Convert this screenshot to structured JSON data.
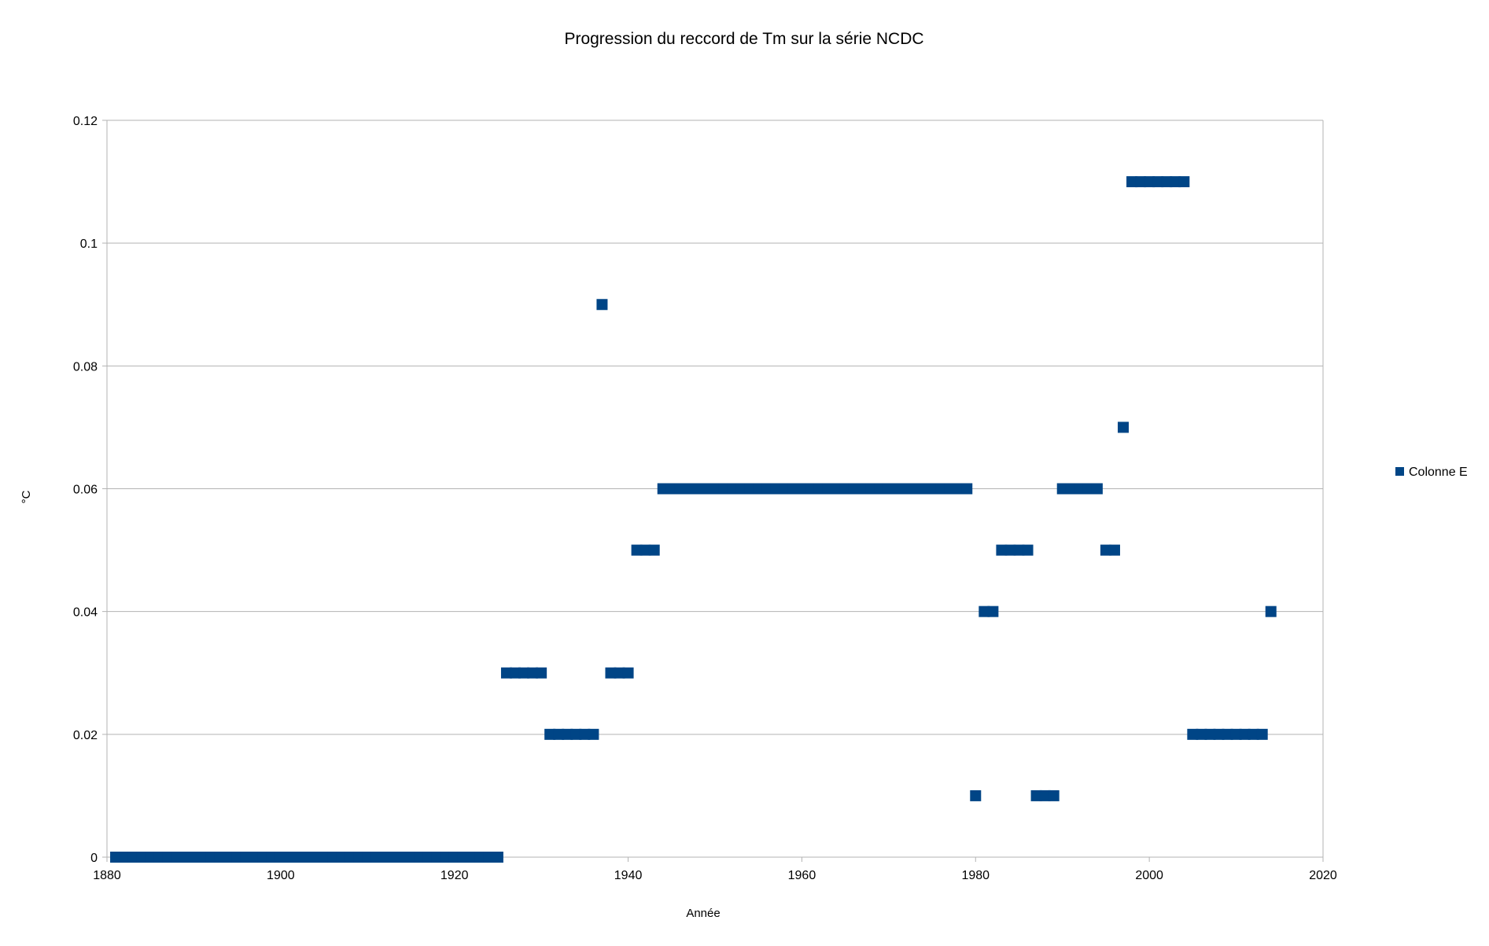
{
  "chart_data": {
    "type": "scatter",
    "title": "Progression du reccord de Tm sur la série NCDC",
    "xlabel": "Année",
    "ylabel": "°C",
    "xlim": [
      1880,
      2020
    ],
    "ylim": [
      0,
      0.12
    ],
    "x_ticks": [
      "1880",
      "1900",
      "1920",
      "1940",
      "1960",
      "1980",
      "2000",
      "2020"
    ],
    "y_ticks": [
      "0",
      "0.02",
      "0.04",
      "0.06",
      "0.08",
      "0.1",
      "0.12"
    ],
    "grid": true,
    "legend_position": "right",
    "series": [
      {
        "name": "Colonne E",
        "color": "#004586",
        "marker": "square",
        "x": [
          1881,
          1882,
          1883,
          1884,
          1885,
          1886,
          1887,
          1888,
          1889,
          1890,
          1891,
          1892,
          1893,
          1894,
          1895,
          1896,
          1897,
          1898,
          1899,
          1900,
          1901,
          1902,
          1903,
          1904,
          1905,
          1906,
          1907,
          1908,
          1909,
          1910,
          1911,
          1912,
          1913,
          1914,
          1915,
          1916,
          1917,
          1918,
          1919,
          1920,
          1921,
          1922,
          1923,
          1924,
          1925,
          1926,
          1927,
          1928,
          1929,
          1930,
          1931,
          1932,
          1933,
          1934,
          1935,
          1936,
          1937,
          1938,
          1939,
          1940,
          1941,
          1942,
          1943,
          1944,
          1945,
          1946,
          1947,
          1948,
          1949,
          1950,
          1951,
          1952,
          1953,
          1954,
          1955,
          1956,
          1957,
          1958,
          1959,
          1960,
          1961,
          1962,
          1963,
          1964,
          1965,
          1966,
          1967,
          1968,
          1969,
          1970,
          1971,
          1972,
          1973,
          1974,
          1975,
          1976,
          1977,
          1978,
          1979,
          1980,
          1981,
          1982,
          1983,
          1984,
          1985,
          1986,
          1987,
          1988,
          1989,
          1990,
          1991,
          1992,
          1993,
          1994,
          1995,
          1996,
          1997,
          1998,
          1999,
          2000,
          2001,
          2002,
          2003,
          2004,
          2005,
          2006,
          2007,
          2008,
          2009,
          2010,
          2011,
          2012,
          2013,
          2014
        ],
        "y": [
          0,
          0,
          0,
          0,
          0,
          0,
          0,
          0,
          0,
          0,
          0,
          0,
          0,
          0,
          0,
          0,
          0,
          0,
          0,
          0,
          0,
          0,
          0,
          0,
          0,
          0,
          0,
          0,
          0,
          0,
          0,
          0,
          0,
          0,
          0,
          0,
          0,
          0,
          0,
          0,
          0,
          0,
          0,
          0,
          0,
          0.03,
          0.03,
          0.03,
          0.03,
          0.03,
          0.02,
          0.02,
          0.02,
          0.02,
          0.02,
          0.02,
          0.09,
          0.03,
          0.03,
          0.03,
          0.05,
          0.05,
          0.05,
          0.06,
          0.06,
          0.06,
          0.06,
          0.06,
          0.06,
          0.06,
          0.06,
          0.06,
          0.06,
          0.06,
          0.06,
          0.06,
          0.06,
          0.06,
          0.06,
          0.06,
          0.06,
          0.06,
          0.06,
          0.06,
          0.06,
          0.06,
          0.06,
          0.06,
          0.06,
          0.06,
          0.06,
          0.06,
          0.06,
          0.06,
          0.06,
          0.06,
          0.06,
          0.06,
          0.06,
          0.01,
          0.04,
          0.04,
          0.05,
          0.05,
          0.05,
          0.05,
          0.01,
          0.01,
          0.01,
          0.06,
          0.06,
          0.06,
          0.06,
          0.06,
          0.05,
          0.05,
          0.07,
          0.11,
          0.11,
          0.11,
          0.11,
          0.11,
          0.11,
          0.11,
          0.02,
          0.02,
          0.02,
          0.02,
          0.02,
          0.02,
          0.02,
          0.02,
          0.02,
          0.04
        ]
      }
    ]
  }
}
